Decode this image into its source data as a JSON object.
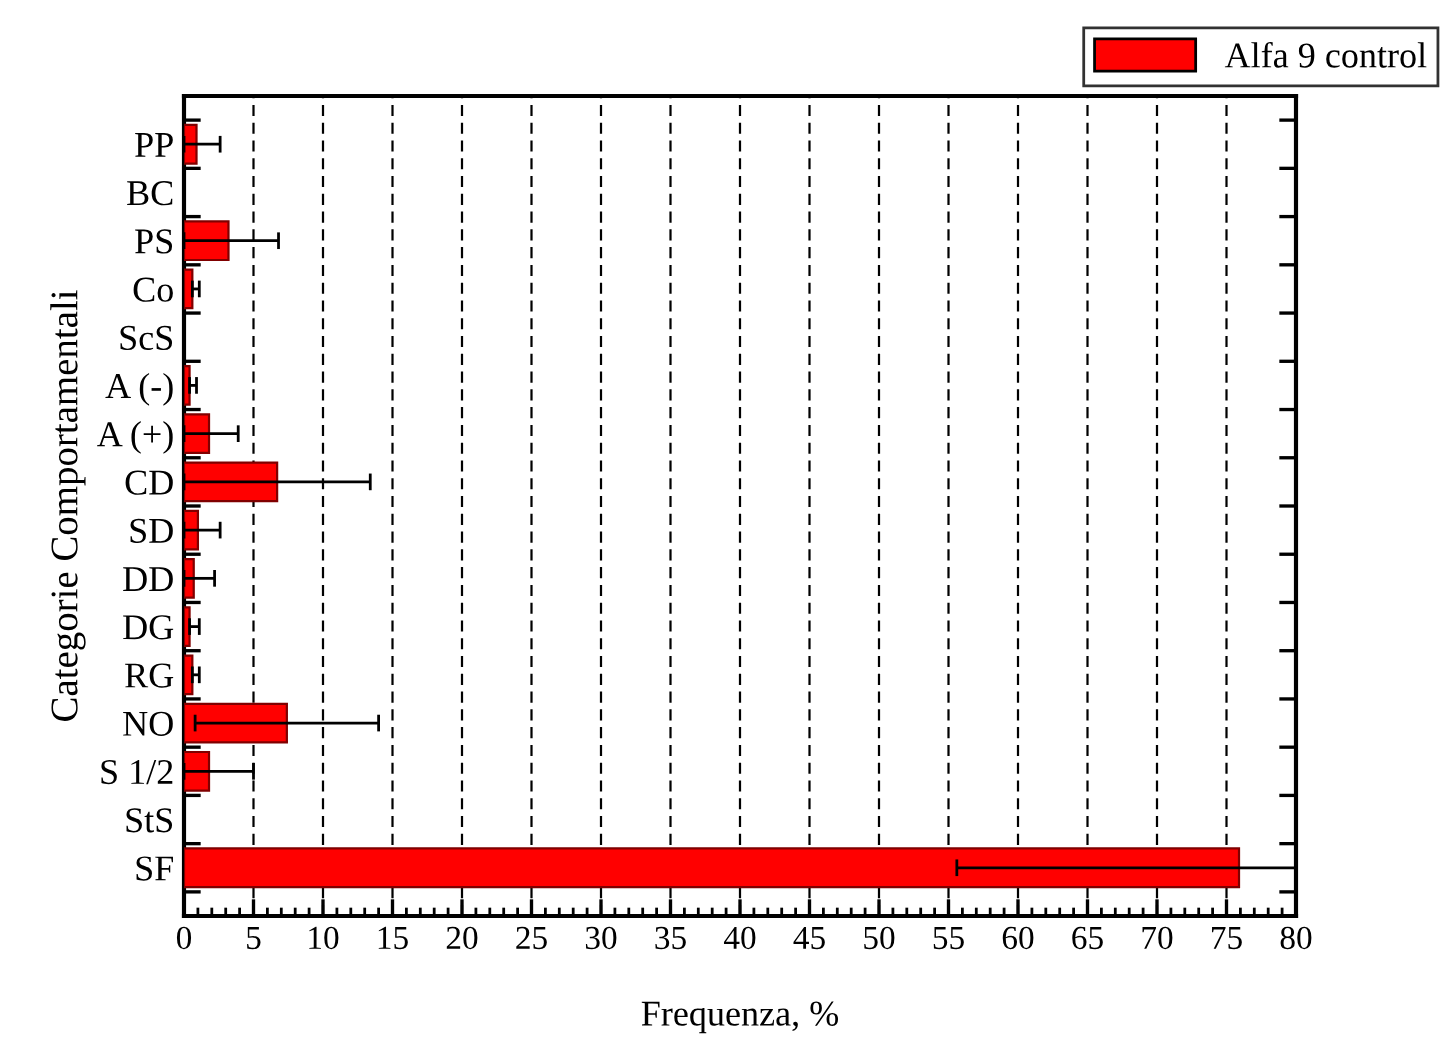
{
  "chart_data": {
    "type": "bar",
    "orientation": "horizontal",
    "xlabel": "Frequenza, %",
    "ylabel": "Categorie Comportamentali",
    "categories": [
      "PP",
      "BC",
      "PS",
      "Co",
      "ScS",
      "A (-)",
      "A (+)",
      "CD",
      "SD",
      "DD",
      "DG",
      "RG",
      "NO",
      "S 1/2",
      "StS",
      "SF"
    ],
    "series": [
      {
        "name": "Alfa 9 control",
        "color": "#ff0000",
        "values": [
          0.9,
          0,
          3.2,
          0.6,
          0,
          0.4,
          1.8,
          6.7,
          1.0,
          0.7,
          0.4,
          0.6,
          7.4,
          1.8,
          0,
          75.9
        ],
        "errors": [
          [
            0,
            2.6
          ],
          null,
          [
            0,
            6.8
          ],
          [
            0.6,
            1.1
          ],
          null,
          [
            0.4,
            0.9
          ],
          [
            0,
            3.9
          ],
          [
            0,
            13.4
          ],
          [
            0,
            2.6
          ],
          [
            0,
            2.2
          ],
          [
            0.4,
            1.1
          ],
          [
            0.6,
            1.1
          ],
          [
            0.8,
            14.0
          ],
          [
            0,
            5.0
          ],
          null,
          [
            55.6,
            80
          ]
        ]
      }
    ],
    "xlim": [
      0,
      80
    ],
    "xticks": [
      0,
      5,
      10,
      15,
      20,
      25,
      30,
      35,
      40,
      45,
      50,
      55,
      60,
      65,
      70,
      75,
      80
    ],
    "grid": "x",
    "legend": "top right"
  }
}
